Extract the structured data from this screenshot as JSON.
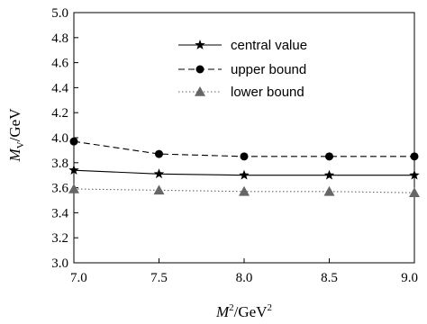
{
  "chart_data": {
    "type": "line",
    "x": [
      7.0,
      7.5,
      8.0,
      8.5,
      9.0
    ],
    "x_tick_labels": [
      "7.0",
      "7.5",
      "8.0",
      "8.5",
      "9.0"
    ],
    "y_tick_labels": [
      "3.0",
      "3.2",
      "3.4",
      "3.6",
      "3.8",
      "4.0",
      "4.2",
      "4.4",
      "4.6",
      "4.8",
      "5.0"
    ],
    "xlim": [
      7.0,
      9.0
    ],
    "ylim": [
      3.0,
      5.0
    ],
    "xlabel": {
      "main": "M",
      "sup1": "2",
      "rest": "/GeV",
      "sup2": "2"
    },
    "ylabel": {
      "main": "M",
      "sub": "V",
      "rest": "/GeV"
    },
    "grid": false,
    "legend_position": "top-center",
    "series": [
      {
        "name": "central value",
        "values": [
          3.74,
          3.71,
          3.7,
          3.7,
          3.7
        ],
        "marker": "star",
        "line": "solid",
        "color": "#000000"
      },
      {
        "name": "upper bound",
        "values": [
          3.97,
          3.87,
          3.85,
          3.85,
          3.85
        ],
        "marker": "circle",
        "line": "dashed",
        "color": "#000000"
      },
      {
        "name": "lower bound",
        "values": [
          3.59,
          3.58,
          3.57,
          3.57,
          3.56
        ],
        "marker": "triangle",
        "line": "dotted",
        "color": "#666666"
      }
    ]
  }
}
